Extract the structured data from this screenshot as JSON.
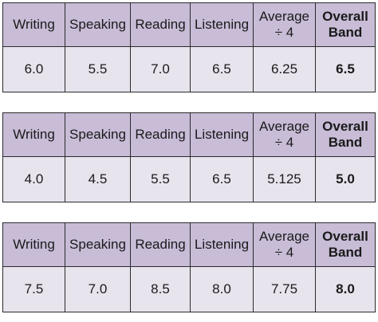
{
  "tables": [
    {
      "headers": {
        "writing": "Writing",
        "speaking": "Speaking",
        "reading": "Reading",
        "listening": "Listening",
        "average_line1": "Average",
        "average_line2": "÷ 4",
        "overall_line1": "Overall",
        "overall_line2": "Band"
      },
      "values": {
        "writing": "6.0",
        "speaking": "5.5",
        "reading": "7.0",
        "listening": "6.5",
        "average": "6.25",
        "overall": "6.5"
      }
    },
    {
      "headers": {
        "writing": "Writing",
        "speaking": "Speaking",
        "reading": "Reading",
        "listening": "Listening",
        "average_line1": "Average",
        "average_line2": "÷ 4",
        "overall_line1": "Overall",
        "overall_line2": "Band"
      },
      "values": {
        "writing": "4.0",
        "speaking": "4.5",
        "reading": "5.5",
        "listening": "6.5",
        "average": "5.125",
        "overall": "5.0"
      }
    },
    {
      "headers": {
        "writing": "Writing",
        "speaking": "Speaking",
        "reading": "Reading",
        "listening": "Listening",
        "average_line1": "Average",
        "average_line2": "÷ 4",
        "overall_line1": "Overall",
        "overall_line2": "Band"
      },
      "values": {
        "writing": "7.5",
        "speaking": "7.0",
        "reading": "8.5",
        "listening": "8.0",
        "average": "7.75",
        "overall": "8.0"
      }
    }
  ],
  "colors": {
    "header_background": "#c8bcd7",
    "value_background": "#e8e4ee",
    "border": "#2a2a2a"
  }
}
